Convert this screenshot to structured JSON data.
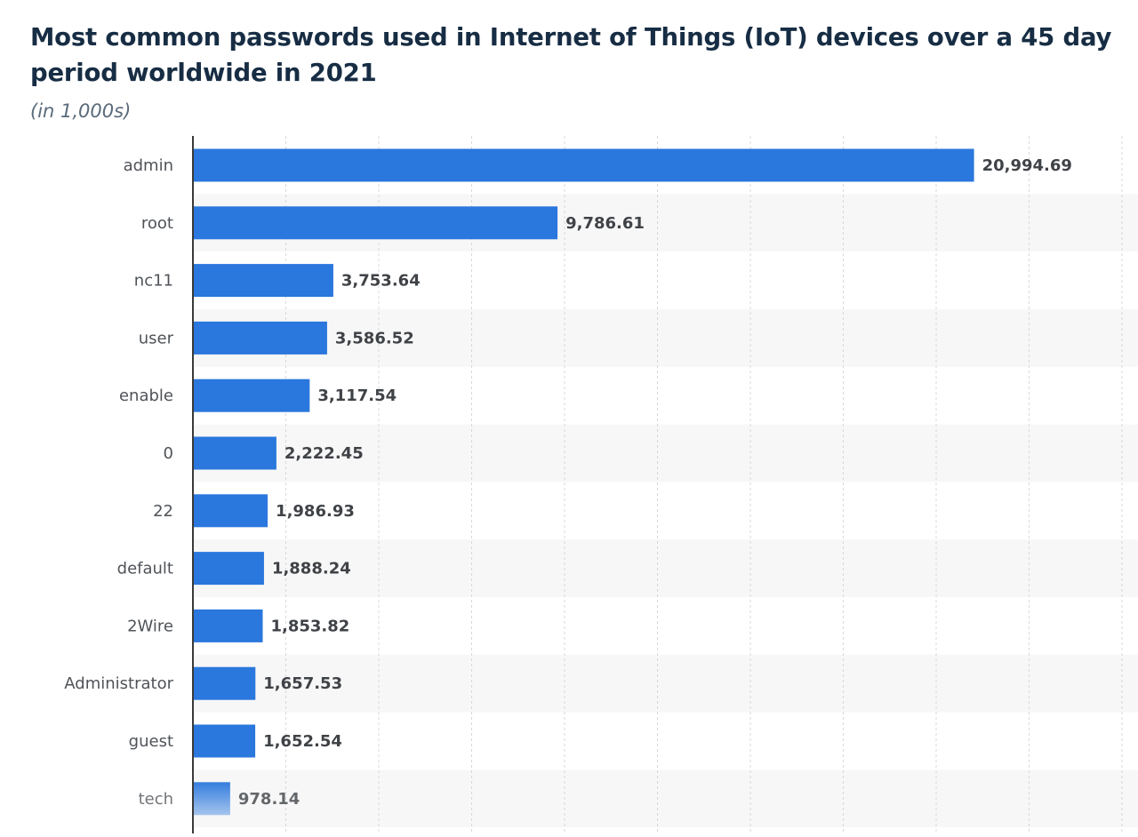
{
  "title": "Most common passwords used in Internet of Things (IoT) devices over a 45 day period worldwide in 2021",
  "subtitle": "(in 1,000s)",
  "colors": {
    "bar": "#2a77dd",
    "title": "#172d44",
    "band": "#f7f7f7",
    "grid": "#d8d8d8",
    "axis": "#3a3a3a"
  },
  "chart_data": {
    "type": "bar",
    "orientation": "horizontal",
    "categories": [
      "admin",
      "root",
      "nc11",
      "user",
      "enable",
      "0",
      "22",
      "default",
      "2Wire",
      "Administrator",
      "guest",
      "tech"
    ],
    "values": [
      20994.69,
      9786.61,
      3753.64,
      3586.52,
      3117.54,
      2222.45,
      1986.93,
      1888.24,
      1853.82,
      1657.53,
      1652.54,
      978.14
    ],
    "value_labels": [
      "20,994.69",
      "9,786.61",
      "3,753.64",
      "3,586.52",
      "3,117.54",
      "2,222.45",
      "1,986.93",
      "1,888.24",
      "1,853.82",
      "1,657.53",
      "1,652.54",
      "978.14"
    ],
    "title": "Most common passwords used in Internet of Things (IoT) devices over a 45 day period worldwide in 2021",
    "subtitle": "(in 1,000s)",
    "xlim": [
      0,
      25000
    ],
    "grid": true,
    "legend": "none"
  }
}
